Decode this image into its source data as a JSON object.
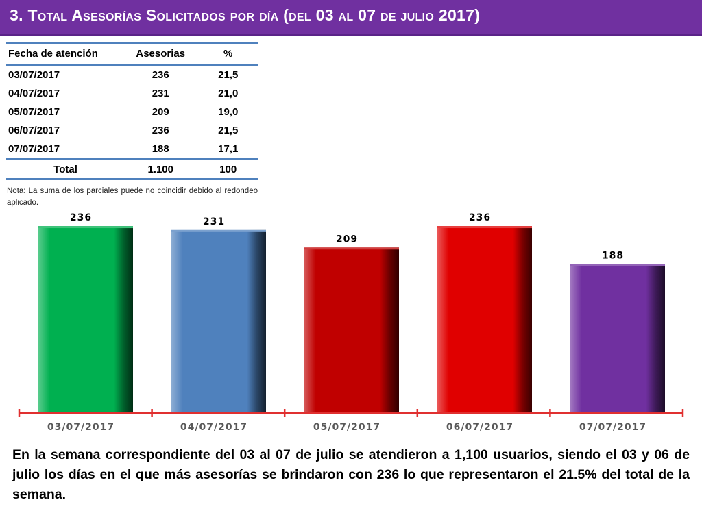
{
  "title": "3.  Total Asesorías Solicitados por día  (del 03 al 07 de julio 2017)",
  "table": {
    "headers": [
      "Fecha de atención",
      "Asesorias",
      "%"
    ],
    "rows": [
      [
        "03/07/2017",
        "236",
        "21,5"
      ],
      [
        "04/07/2017",
        "231",
        "21,0"
      ],
      [
        "05/07/2017",
        "209",
        "19,0"
      ],
      [
        "06/07/2017",
        "236",
        "21,5"
      ],
      [
        "07/07/2017",
        "188",
        "17,1"
      ]
    ],
    "total": [
      "Total",
      "1.100",
      "100"
    ]
  },
  "note": "Nota: La suma de los parciales puede no coincidir debido al redondeo aplicado.",
  "chart_data": {
    "type": "bar",
    "categories": [
      "03/07/2017",
      "04/07/2017",
      "05/07/2017",
      "06/07/2017",
      "07/07/2017"
    ],
    "values": [
      236,
      231,
      209,
      236,
      188
    ],
    "data_labels": [
      "236",
      "231",
      "209",
      "236",
      "188"
    ],
    "colors": [
      "#00b050",
      "#4f81bd",
      "#c00000",
      "#e00000",
      "#7030a0"
    ],
    "axis_color": "#e03030",
    "label_color": "#595959",
    "title": "",
    "xlabel": "",
    "ylabel": "",
    "grid": false
  },
  "summary": "En la semana correspondiente del 03 al 07 de julio se atendieron a 1,100 usuarios, siendo el 03 y 06 de julio los días en el que más asesorías se brindaron con 236 lo que representaron el 21.5% del total de la semana."
}
